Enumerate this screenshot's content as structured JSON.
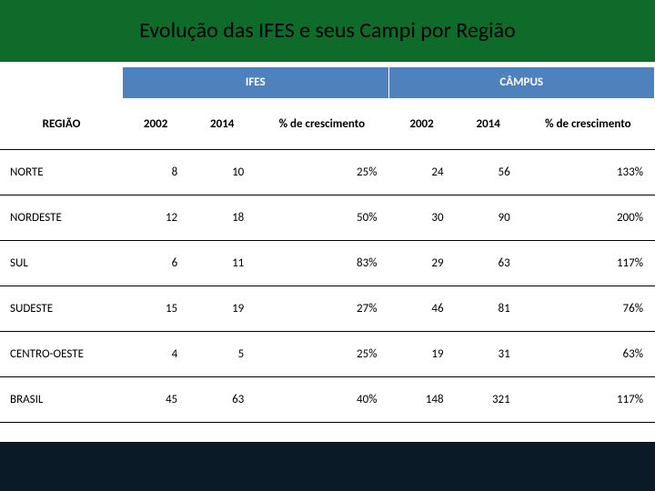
{
  "title": "Evolução das IFES e seus Campi por Região",
  "colors": {
    "title_bg": "#0e6b2a",
    "table_header_bg": "#4f81bd",
    "footer_bg": "#0a1a26",
    "border": "#000000"
  },
  "table": {
    "group_headers": {
      "ifes": "IFES",
      "campus": "CÂMPUS"
    },
    "columns": {
      "region": "REGIÃO",
      "y2002": "2002",
      "y2014": "2014",
      "growth": "% de crescimento"
    },
    "rows": [
      {
        "region": "NORTE",
        "ifes_2002": 8,
        "ifes_2014": 10,
        "ifes_growth": "25%",
        "campus_2002": 24,
        "campus_2014": 56,
        "campus_growth": "133%"
      },
      {
        "region": "NORDESTE",
        "ifes_2002": 12,
        "ifes_2014": 18,
        "ifes_growth": "50%",
        "campus_2002": 30,
        "campus_2014": 90,
        "campus_growth": "200%"
      },
      {
        "region": "SUL",
        "ifes_2002": 6,
        "ifes_2014": 11,
        "ifes_growth": "83%",
        "campus_2002": 29,
        "campus_2014": 63,
        "campus_growth": "117%"
      },
      {
        "region": "SUDESTE",
        "ifes_2002": 15,
        "ifes_2014": 19,
        "ifes_growth": "27%",
        "campus_2002": 46,
        "campus_2014": 81,
        "campus_growth": "76%"
      },
      {
        "region": "CENTRO-OESTE",
        "ifes_2002": 4,
        "ifes_2014": 5,
        "ifes_growth": "25%",
        "campus_2002": 19,
        "campus_2014": 31,
        "campus_growth": "63%"
      },
      {
        "region": "BRASIL",
        "ifes_2002": 45,
        "ifes_2014": 63,
        "ifes_growth": "40%",
        "campus_2002": 148,
        "campus_2014": 321,
        "campus_growth": "117%"
      }
    ]
  }
}
